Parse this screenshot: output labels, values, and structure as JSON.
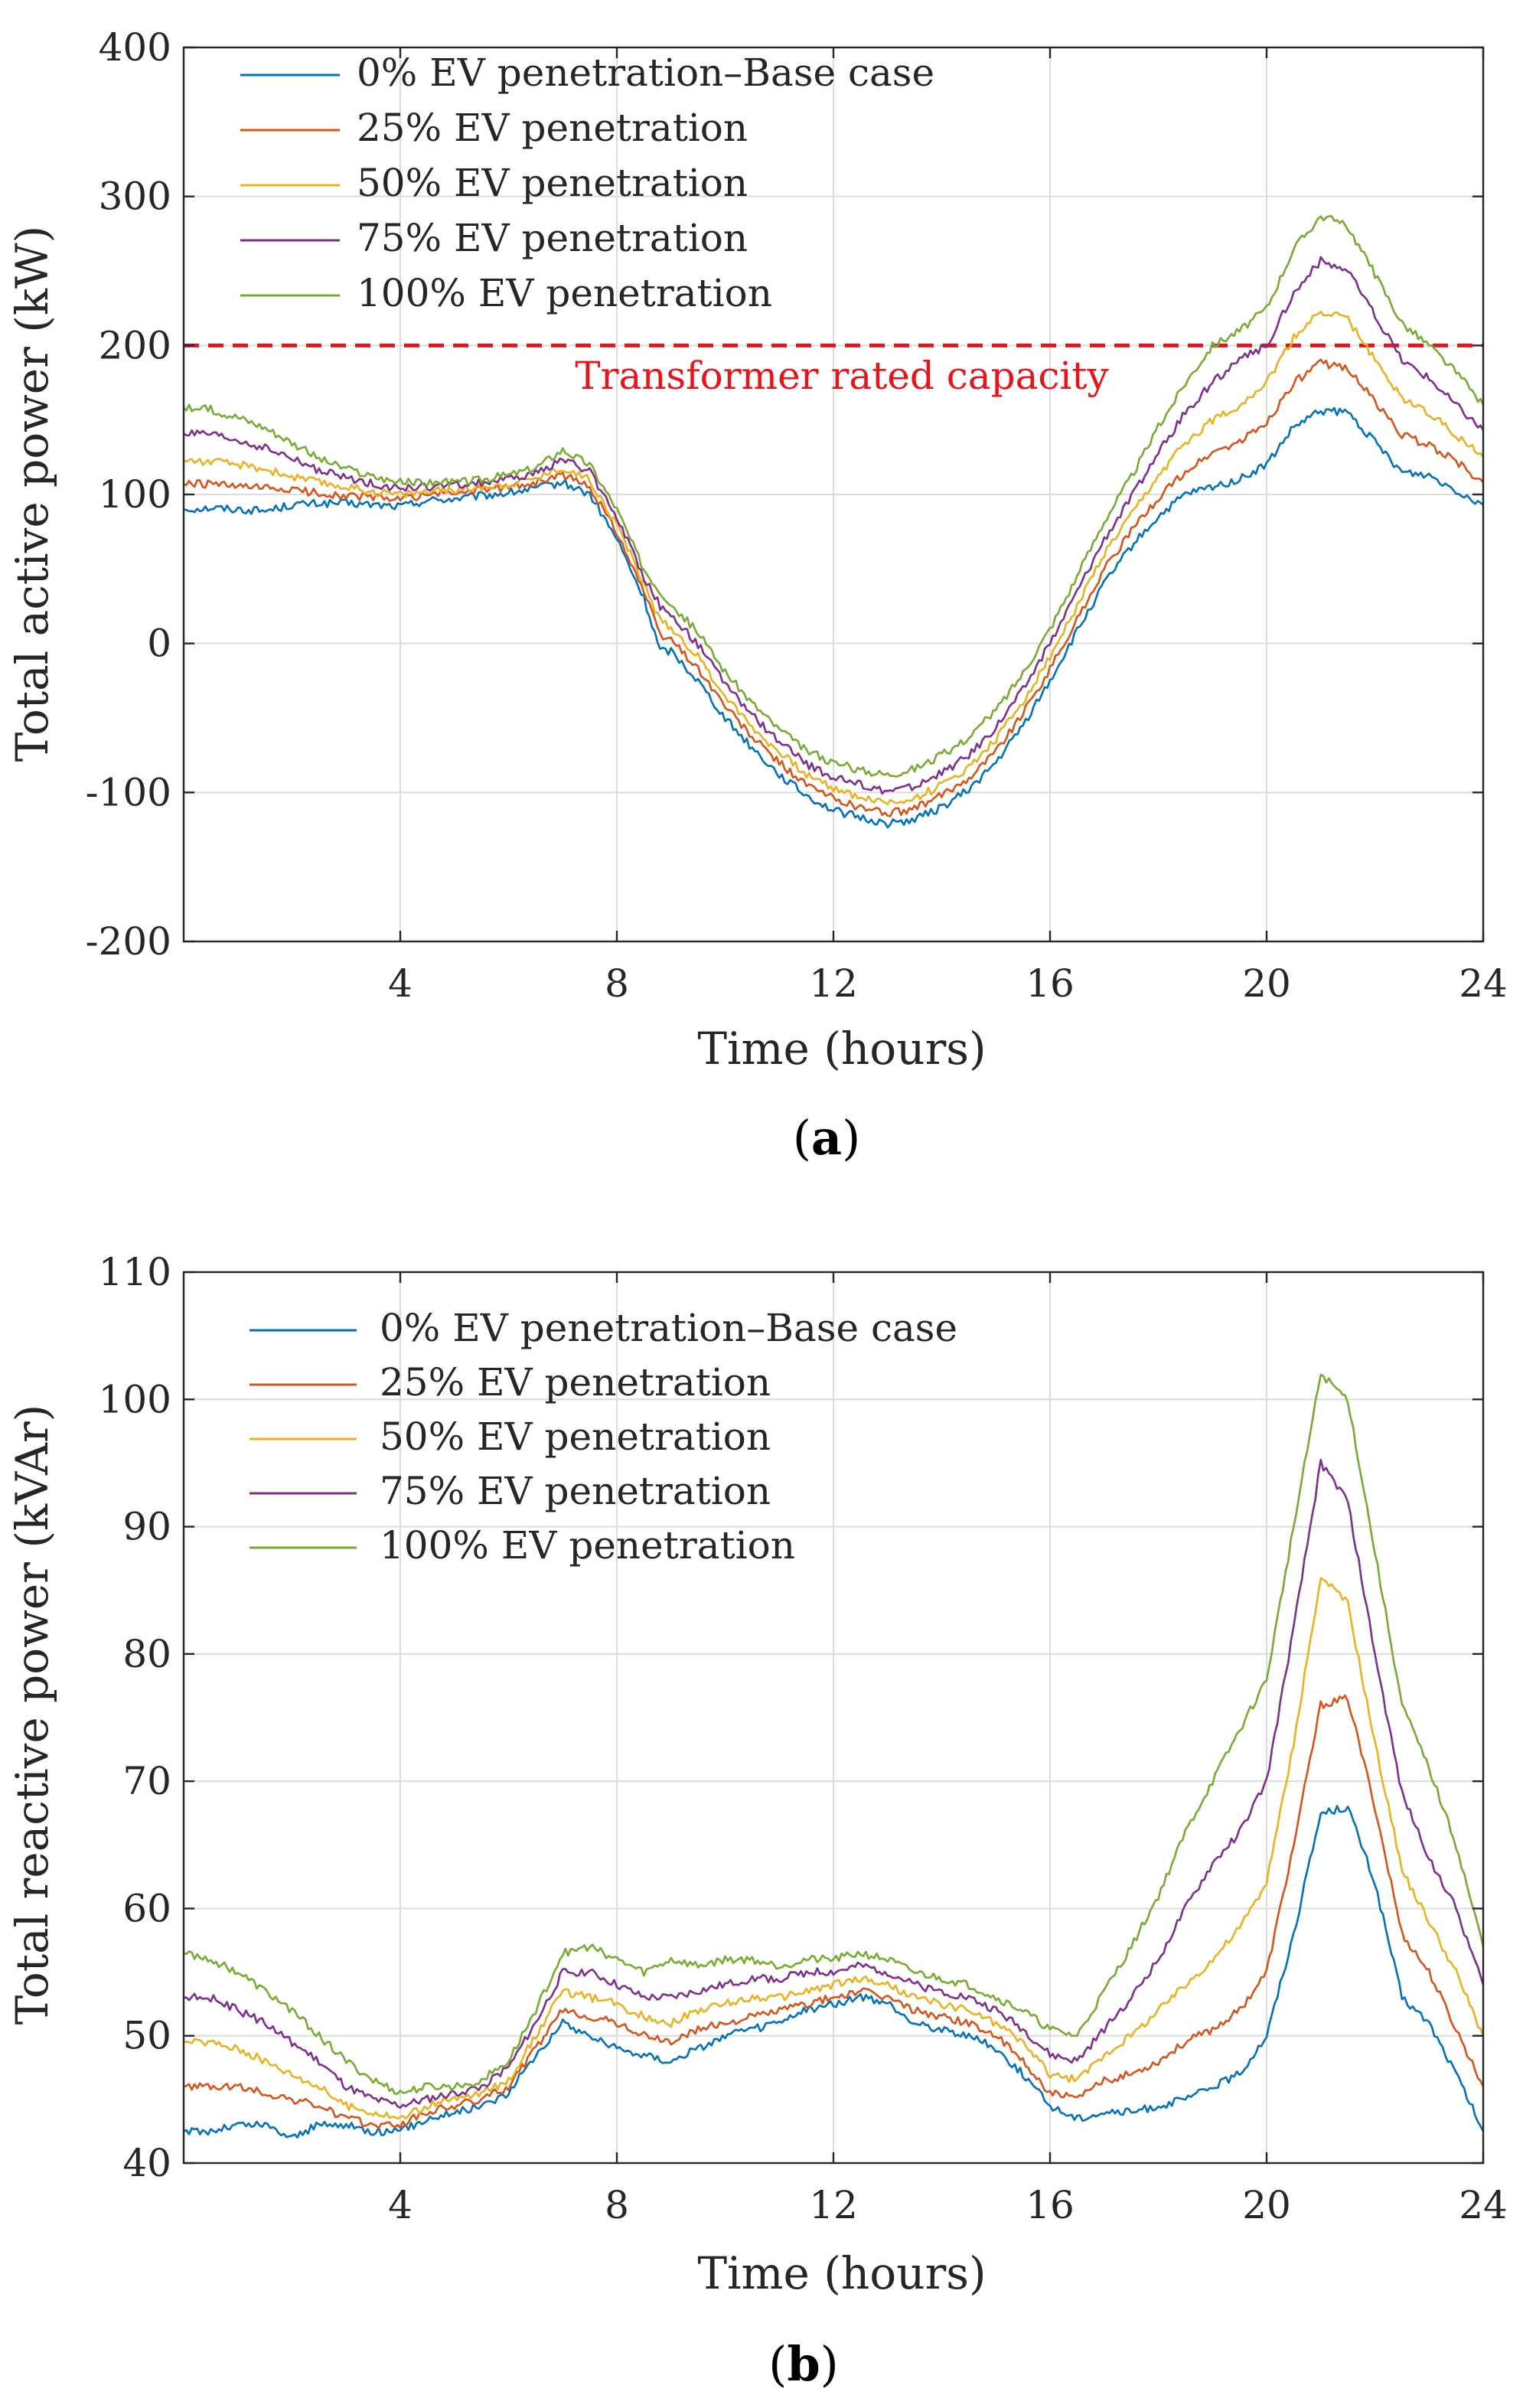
{
  "colors": {
    "background": "#ffffff",
    "axis": "#262626",
    "grid": "#dcdcdc",
    "reference": "#e8141a"
  },
  "chart_data": [
    {
      "id": "a",
      "type": "line",
      "caption_open": "(",
      "caption_letter": "a",
      "caption_close": ")",
      "xlabel": "Time (hours)",
      "ylabel": "Total active power (kW)",
      "xlim": [
        0,
        24
      ],
      "ylim": [
        -200,
        400
      ],
      "xticks": [
        4,
        8,
        12,
        16,
        20,
        24
      ],
      "yticks": [
        -200,
        -100,
        0,
        100,
        200,
        300,
        400
      ],
      "grid": true,
      "legend_position": "top-left",
      "x": [
        0,
        0.5,
        1,
        1.5,
        2,
        2.5,
        3,
        3.5,
        4,
        4.5,
        5,
        5.5,
        6,
        6.5,
        7,
        7.5,
        8,
        8.5,
        8.8,
        9,
        9.5,
        10,
        10.5,
        11,
        11.5,
        12,
        12.5,
        13,
        13.5,
        14,
        14.5,
        15,
        15.5,
        16,
        16.5,
        17,
        17.5,
        18,
        18.5,
        19,
        19.5,
        20,
        20.5,
        21,
        21.5,
        22,
        22.5,
        23,
        23.5,
        24
      ],
      "series": [
        {
          "name": "0% EV penetration–Base case",
          "color": "#0072bd",
          "values": [
            90,
            91,
            90,
            89,
            93,
            94,
            94,
            93,
            92,
            96,
            97,
            99,
            101,
            104,
            108,
            100,
            70,
            30,
            -5,
            -5,
            -25,
            -50,
            -70,
            -88,
            -102,
            -112,
            -117,
            -121,
            -118,
            -110,
            -98,
            -80,
            -55,
            -25,
            8,
            40,
            65,
            85,
            100,
            105,
            110,
            120,
            145,
            156,
            155,
            135,
            115,
            113,
            103,
            93
          ]
        },
        {
          "name": "25% EV penetration",
          "color": "#d95319",
          "values": [
            107,
            107,
            105,
            104,
            103,
            101,
            99,
            98,
            97,
            100,
            101,
            103,
            105,
            108,
            113,
            105,
            75,
            35,
            5,
            3,
            -17,
            -42,
            -63,
            -80,
            -95,
            -104,
            -110,
            -114,
            -111,
            -102,
            -90,
            -72,
            -47,
            -17,
            16,
            50,
            75,
            98,
            115,
            128,
            135,
            148,
            175,
            188,
            185,
            162,
            140,
            133,
            122,
            108
          ]
        },
        {
          "name": "50% EV penetration",
          "color": "#edb120",
          "values": [
            123,
            122,
            120,
            117,
            112,
            108,
            105,
            102,
            100,
            102,
            103,
            105,
            107,
            111,
            118,
            110,
            80,
            40,
            15,
            11,
            -9,
            -35,
            -56,
            -73,
            -88,
            -97,
            -103,
            -107,
            -104,
            -95,
            -83,
            -64,
            -39,
            -9,
            25,
            60,
            86,
            112,
            135,
            150,
            160,
            175,
            205,
            223,
            218,
            190,
            165,
            155,
            140,
            125
          ]
        },
        {
          "name": "75% EV penetration",
          "color": "#7e2f8e",
          "values": [
            141,
            140,
            136,
            131,
            124,
            116,
            111,
            107,
            104,
            105,
            106,
            108,
            110,
            114,
            124,
            115,
            85,
            45,
            25,
            19,
            -1,
            -27,
            -48,
            -66,
            -81,
            -90,
            -95,
            -99,
            -96,
            -87,
            -75,
            -56,
            -31,
            0,
            35,
            70,
            98,
            128,
            155,
            175,
            190,
            200,
            235,
            257,
            250,
            220,
            190,
            178,
            160,
            143
          ]
        },
        {
          "name": "100% EV penetration",
          "color": "#77ac30",
          "values": [
            158,
            157,
            152,
            145,
            135,
            124,
            117,
            112,
            108,
            108,
            108,
            110,
            113,
            118,
            130,
            120,
            90,
            50,
            35,
            27,
            7,
            -19,
            -40,
            -58,
            -72,
            -80,
            -85,
            -88,
            -84,
            -75,
            -63,
            -45,
            -20,
            10,
            45,
            82,
            112,
            145,
            175,
            200,
            210,
            225,
            265,
            287,
            280,
            248,
            215,
            200,
            182,
            160
          ]
        }
      ],
      "reference_line": {
        "label": "Transformer rated capacity",
        "value": 200
      }
    },
    {
      "id": "b",
      "type": "line",
      "caption_open": "(",
      "caption_letter": "b",
      "caption_close": ")",
      "xlabel": "Time (hours)",
      "ylabel": "Total reactive power (kVAr)",
      "xlim": [
        0,
        24
      ],
      "ylim": [
        40,
        110
      ],
      "xticks": [
        4,
        8,
        12,
        16,
        20,
        24
      ],
      "yticks": [
        40,
        50,
        60,
        70,
        80,
        90,
        100,
        110
      ],
      "grid": true,
      "legend_position": "top-left",
      "x": [
        0,
        0.5,
        1,
        1.5,
        2,
        2.5,
        3,
        3.5,
        4,
        4.5,
        5,
        5.5,
        6,
        6.5,
        7,
        7.5,
        8,
        8.5,
        9,
        9.5,
        10,
        10.5,
        11,
        11.5,
        12,
        12.5,
        13,
        13.5,
        14,
        14.5,
        15,
        15.5,
        16,
        16.5,
        17,
        17.5,
        18,
        18.5,
        19,
        19.5,
        20,
        20.5,
        21,
        21.5,
        22,
        22.5,
        23,
        23.5,
        24
      ],
      "series": [
        {
          "name": "0% EV penetration–Base case",
          "color": "#0072bd",
          "values": [
            42.5,
            42.5,
            43,
            43,
            42,
            43,
            43,
            42.5,
            42.5,
            43.5,
            44,
            44.5,
            45.5,
            48.5,
            51,
            50,
            49,
            48.5,
            48,
            49,
            50,
            50.5,
            51,
            52,
            52.5,
            53,
            52.5,
            51,
            50.5,
            50,
            49,
            47,
            44.5,
            43.5,
            44,
            44,
            44.5,
            45,
            46,
            47,
            50,
            58,
            67.5,
            68,
            62,
            53,
            51,
            47,
            42.5
          ]
        },
        {
          "name": "25% EV penetration",
          "color": "#d95319",
          "values": [
            46,
            46,
            46,
            45.5,
            45,
            44.5,
            43.5,
            43,
            43,
            44,
            44.5,
            45,
            46,
            49,
            52,
            51.5,
            51,
            50,
            49.5,
            50.5,
            51,
            51.5,
            52,
            52.5,
            53,
            53.5,
            53,
            52,
            51.5,
            51,
            50,
            48,
            45.5,
            45,
            46.5,
            47,
            48,
            49.5,
            50.5,
            52,
            55,
            65,
            76,
            76.5,
            68,
            58,
            55,
            50.5,
            46
          ]
        },
        {
          "name": "50% EV penetration",
          "color": "#edb120",
          "values": [
            49.5,
            49.5,
            49,
            48,
            47,
            46,
            44.5,
            44,
            43.5,
            44.5,
            45,
            45.5,
            46.5,
            50,
            53.5,
            53,
            52.5,
            51.5,
            51,
            52,
            52.5,
            53,
            53,
            53.5,
            54,
            54.5,
            54,
            53,
            52.5,
            52,
            51,
            49.5,
            47,
            46.5,
            48.5,
            50,
            52,
            54,
            56,
            58.5,
            62,
            73,
            86,
            84,
            73,
            63,
            59,
            55,
            50
          ]
        },
        {
          "name": "75% EV penetration",
          "color": "#7e2f8e",
          "values": [
            53,
            53,
            52,
            51,
            49.5,
            48,
            46,
            45,
            44.5,
            45,
            45.5,
            46,
            47.5,
            51,
            55,
            55,
            54,
            53,
            53,
            53.5,
            54,
            54.5,
            54.5,
            55,
            55,
            55.5,
            55,
            54,
            53.5,
            53,
            52,
            50.5,
            48.5,
            48,
            50.5,
            53,
            56,
            60,
            63.5,
            66,
            70,
            82,
            95,
            92,
            80,
            69,
            64,
            60,
            54
          ]
        },
        {
          "name": "100% EV penetration",
          "color": "#77ac30",
          "values": [
            56.5,
            56,
            55,
            53.5,
            52,
            50,
            48,
            46.5,
            45.5,
            46,
            46,
            46.5,
            48,
            52,
            56.5,
            57,
            56,
            55,
            56,
            55.5,
            56,
            56,
            55.5,
            56,
            56,
            56.5,
            56,
            55,
            54.5,
            54,
            53,
            52,
            50.5,
            50,
            53.5,
            57,
            61,
            66,
            70,
            74,
            78,
            90,
            102,
            100,
            88,
            76,
            71,
            65,
            57
          ]
        }
      ]
    }
  ]
}
